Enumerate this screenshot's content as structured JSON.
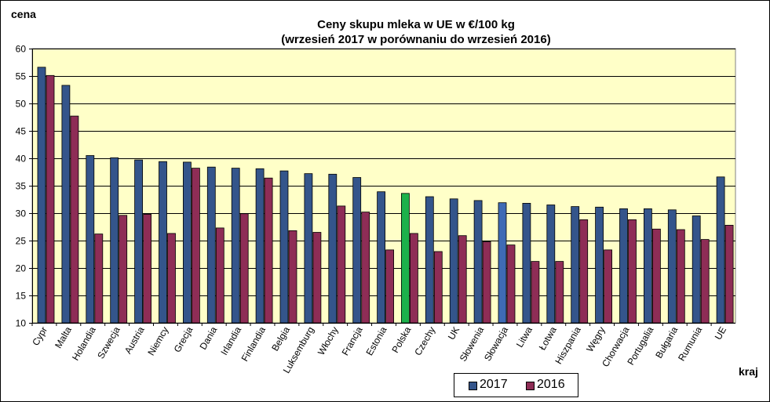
{
  "chart_data": {
    "type": "bar",
    "title": [
      "Ceny skupu mleka  w UE w €/100 kg",
      "(wrzesień 2017 w porównaniu do wrzesień 2016)"
    ],
    "xlabel": "kraj",
    "ylabel": "cena",
    "ylim": [
      10,
      60
    ],
    "yticks": [
      10,
      15,
      20,
      25,
      30,
      35,
      40,
      45,
      50,
      55,
      60
    ],
    "grid": true,
    "legend_position": "bottom-right",
    "categories": [
      "Cypr",
      "Malta",
      "Holandia",
      "Szwecja",
      "Austria",
      "Niemcy",
      "Grecja",
      "Dania",
      "Irlandia",
      "Finlandia",
      "Belgia",
      "Luksemburg",
      "Włochy",
      "Francja",
      "Estonia",
      "Polska",
      "Czechy",
      "UK",
      "Słowenia",
      "Słowacja",
      "Litwa",
      "Łotwa",
      "Hiszpania",
      "Węgry",
      "Chorwacja",
      "Portugalia",
      "Bułgaria",
      "Rumunia",
      "UE"
    ],
    "series": [
      {
        "name": "2017",
        "color": "#34558B",
        "values": [
          56.6,
          53.3,
          40.5,
          40.1,
          39.7,
          39.4,
          39.3,
          38.4,
          38.2,
          38.1,
          37.7,
          37.2,
          37.1,
          36.5,
          33.9,
          33.6,
          33.0,
          32.6,
          32.3,
          31.9,
          31.8,
          31.5,
          31.2,
          31.1,
          30.8,
          30.8,
          30.6,
          29.5,
          36.6
        ]
      },
      {
        "name": "2016",
        "color": "#8E2D56",
        "values": [
          55.1,
          47.7,
          26.2,
          29.6,
          29.8,
          26.3,
          38.2,
          27.3,
          29.9,
          36.4,
          26.8,
          26.5,
          31.3,
          30.2,
          23.3,
          26.3,
          23.0,
          25.9,
          24.8,
          24.2,
          21.2,
          21.2,
          28.8,
          23.3,
          28.8,
          27.1,
          27.0,
          25.2,
          27.8
        ]
      }
    ],
    "highlight_bars": [
      {
        "category": "Polska",
        "series": "2017",
        "color": "#1CB14B"
      },
      {
        "category": "Słowacja",
        "series": "2017",
        "color": "#3F6BB5"
      }
    ],
    "plot_background": "#FFFFC8"
  }
}
